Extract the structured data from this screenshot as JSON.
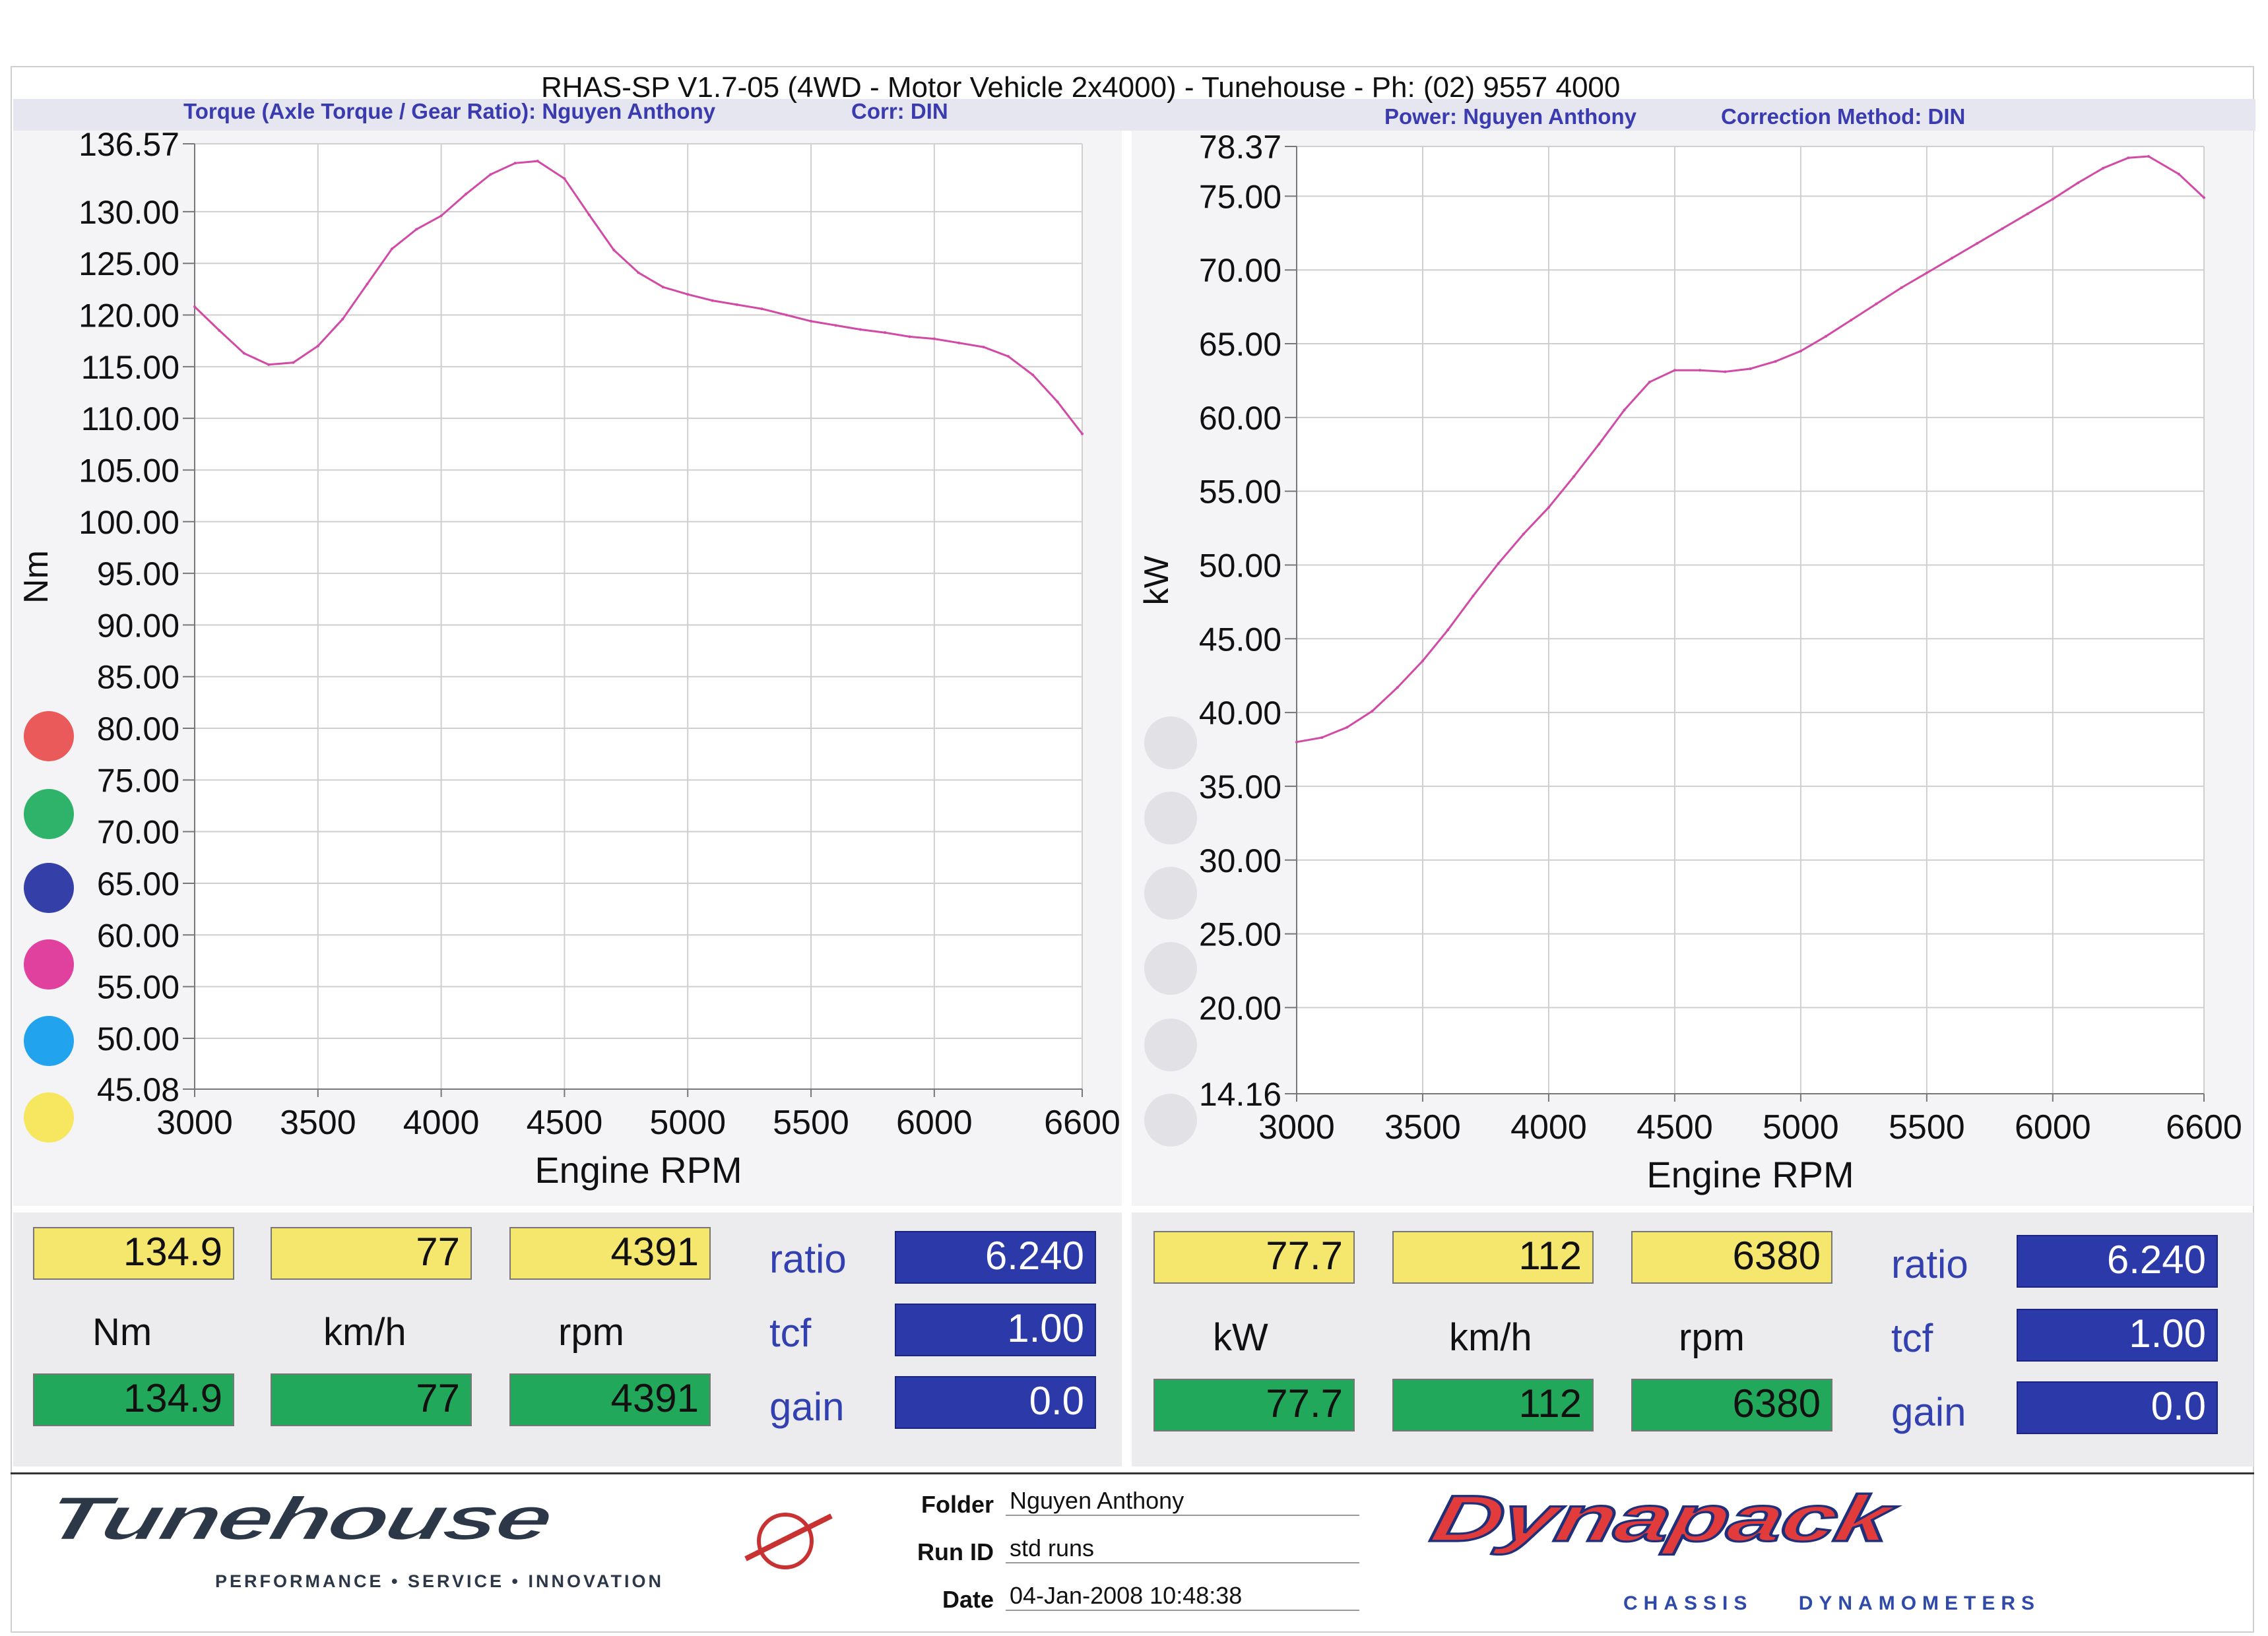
{
  "header": {
    "title": "RHAS-SP V1.7-05   (4WD - Motor Vehicle 2x4000) - Tunehouse - Ph: (02) 9557 4000",
    "left_subtitle": "Torque (Axle Torque / Gear Ratio): Nguyen Anthony",
    "left_corr": "Corr: DIN",
    "right_subtitle": "Power: Nguyen Anthony",
    "right_corr": "Correction Method: DIN"
  },
  "chart_data": [
    {
      "type": "line",
      "xlabel": "Engine RPM",
      "ylabel": "Nm",
      "xlim": [
        3000,
        6600
      ],
      "ylim": [
        45.08,
        136.57
      ],
      "x_ticks": [
        "3000",
        "3500",
        "4000",
        "4500",
        "5000",
        "5500",
        "6000",
        "6600"
      ],
      "y_ticks": [
        "136.57",
        "130.00",
        "125.00",
        "120.00",
        "115.00",
        "110.00",
        "105.00",
        "100.00",
        "95.00",
        "90.00",
        "85.00",
        "80.00",
        "75.00",
        "70.00",
        "65.00",
        "60.00",
        "55.00",
        "50.00",
        "45.08"
      ],
      "series": [
        {
          "color": "#d14aa6",
          "x": [
            3000,
            3100,
            3200,
            3300,
            3400,
            3500,
            3600,
            3700,
            3800,
            3900,
            4000,
            4100,
            4200,
            4300,
            4391,
            4500,
            4600,
            4700,
            4800,
            4900,
            5000,
            5100,
            5200,
            5300,
            5400,
            5500,
            5600,
            5700,
            5800,
            5900,
            6000,
            6100,
            6200,
            6300,
            6400,
            6500,
            6600
          ],
          "y": [
            120.8,
            118.5,
            116.3,
            115.2,
            115.4,
            117.0,
            119.6,
            123.0,
            126.4,
            128.3,
            129.6,
            131.7,
            133.6,
            134.7,
            134.9,
            133.2,
            129.7,
            126.3,
            124.1,
            122.7,
            122.0,
            121.4,
            121.0,
            120.6,
            120.0,
            119.4,
            119.0,
            118.6,
            118.3,
            117.9,
            117.7,
            117.3,
            116.9,
            116.0,
            114.2,
            111.6,
            108.5
          ]
        }
      ]
    },
    {
      "type": "line",
      "xlabel": "Engine RPM",
      "ylabel": "kW",
      "xlim": [
        3000,
        6600
      ],
      "ylim": [
        14.16,
        78.37
      ],
      "x_ticks": [
        "3000",
        "3500",
        "4000",
        "4500",
        "5000",
        "5500",
        "6000",
        "6600"
      ],
      "y_ticks": [
        "78.37",
        "75.00",
        "70.00",
        "65.00",
        "60.00",
        "55.00",
        "50.00",
        "45.00",
        "40.00",
        "35.00",
        "30.00",
        "25.00",
        "20.00",
        "14.16"
      ],
      "series": [
        {
          "color": "#d14aa6",
          "x": [
            3000,
            3100,
            3200,
            3300,
            3400,
            3500,
            3600,
            3700,
            3800,
            3900,
            4000,
            4100,
            4200,
            4300,
            4400,
            4500,
            4600,
            4700,
            4800,
            4900,
            5000,
            5100,
            5200,
            5300,
            5400,
            5500,
            5600,
            5700,
            5800,
            5900,
            6000,
            6100,
            6200,
            6300,
            6380,
            6500,
            6600
          ],
          "y": [
            38.0,
            38.3,
            39.0,
            40.1,
            41.7,
            43.5,
            45.6,
            47.9,
            50.1,
            52.1,
            53.9,
            56.0,
            58.2,
            60.5,
            62.4,
            63.2,
            63.2,
            63.1,
            63.3,
            63.8,
            64.5,
            65.5,
            66.6,
            67.7,
            68.8,
            69.8,
            70.8,
            71.8,
            72.8,
            73.8,
            74.8,
            75.9,
            76.9,
            77.6,
            77.7,
            76.5,
            74.9
          ]
        }
      ]
    }
  ],
  "left_readouts": {
    "top": [
      "134.9",
      "77",
      "4391"
    ],
    "units": [
      "Nm",
      "km/h",
      "rpm"
    ],
    "bottom": [
      "134.9",
      "77",
      "4391"
    ],
    "ratio_label": "ratio",
    "ratio": "6.240",
    "tcf_label": "tcf",
    "tcf": "1.00",
    "gain_label": "gain",
    "gain": "0.0"
  },
  "right_readouts": {
    "top": [
      "77.7",
      "112",
      "6380"
    ],
    "units": [
      "kW",
      "km/h",
      "rpm"
    ],
    "bottom": [
      "77.7",
      "112",
      "6380"
    ],
    "ratio_label": "ratio",
    "ratio": "6.240",
    "tcf_label": "tcf",
    "tcf": "1.00",
    "gain_label": "gain",
    "gain": "0.0"
  },
  "legend_colors": [
    "#ea5a5a",
    "#2fb36a",
    "#3440a8",
    "#e0409e",
    "#22a3ee",
    "#f7e660"
  ],
  "footer": {
    "brand_left": "Tunehouse",
    "brand_left_tagline": "PERFORMANCE • SERVICE • INNOVATION",
    "folder_label": "Folder",
    "folder": "Nguyen Anthony",
    "runid_label": "Run ID",
    "runid": "std runs",
    "date_label": "Date",
    "date": "04-Jan-2008  10:48:38",
    "brand_right": "Dynapack",
    "brand_right_tagline": "CHASSIS    DYNAMOMETERS"
  }
}
